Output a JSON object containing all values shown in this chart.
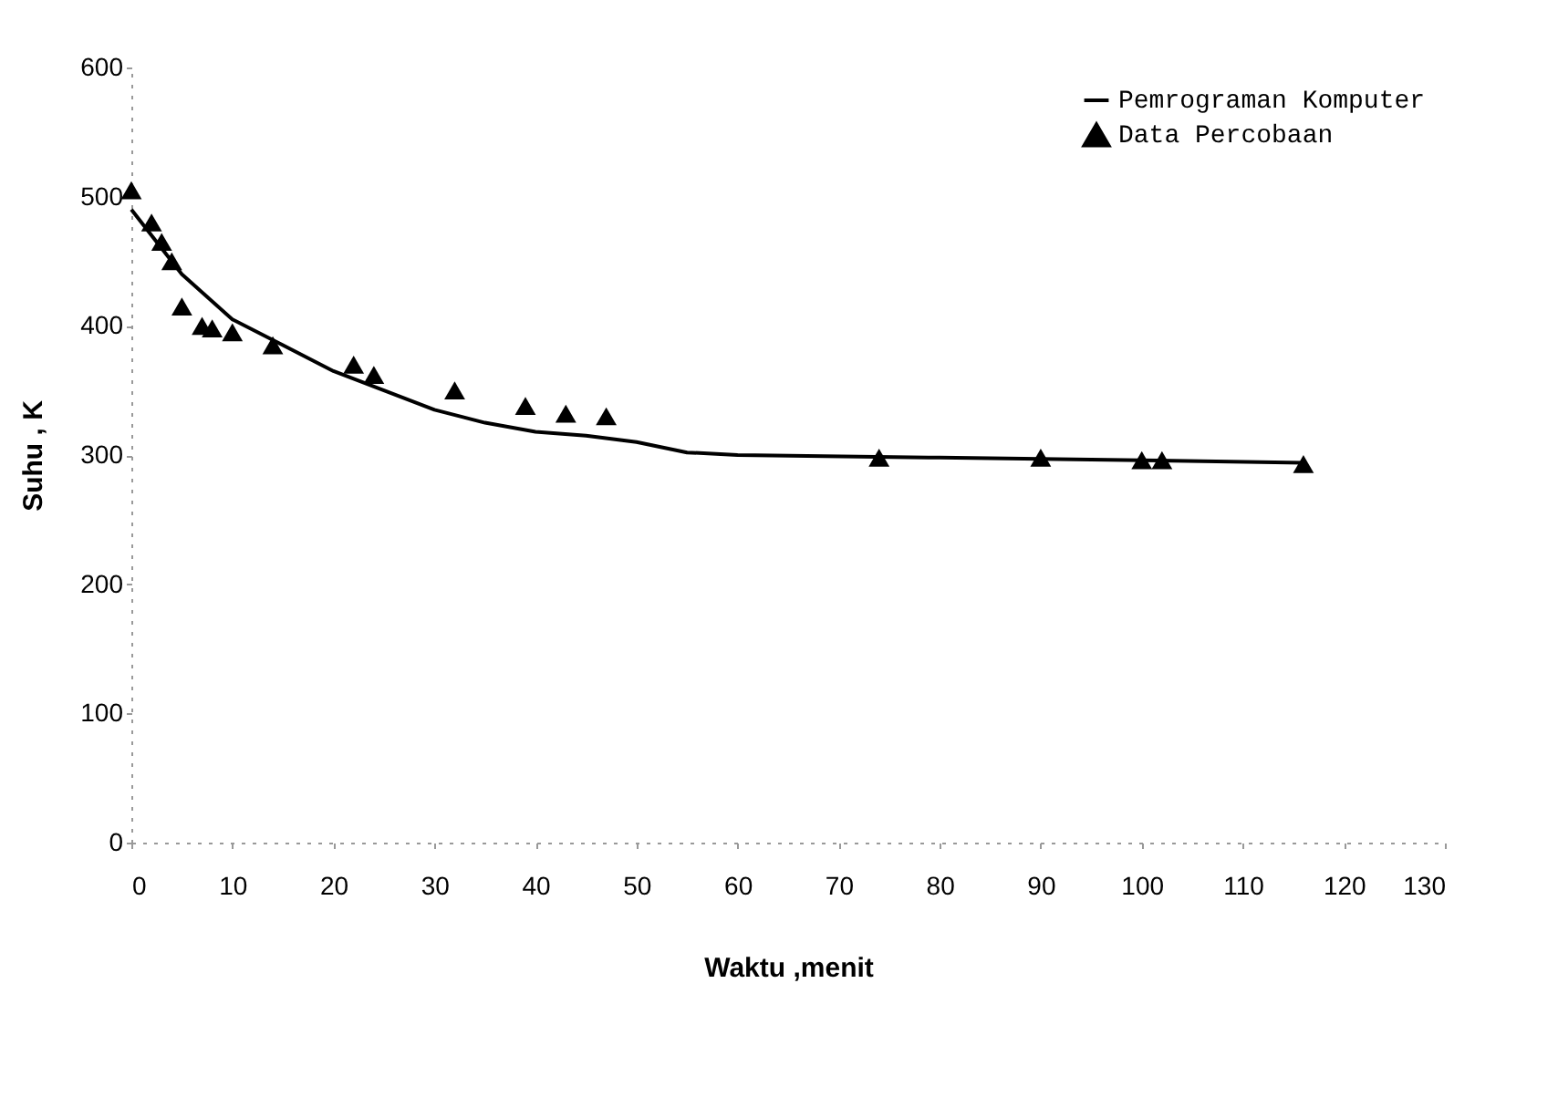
{
  "chart_data": {
    "type": "line",
    "xlabel": "Waktu ,menit",
    "ylabel": "Suhu , K",
    "xlim": [
      0,
      130
    ],
    "ylim": [
      0,
      600
    ],
    "xticks": [
      0,
      10,
      20,
      30,
      40,
      50,
      60,
      70,
      80,
      90,
      100,
      110,
      120,
      130
    ],
    "yticks": [
      0,
      100,
      200,
      300,
      400,
      500,
      600
    ],
    "grid": false,
    "legend": "top right",
    "series": [
      {
        "name": "Pemrograman Komputer",
        "color": "#000000",
        "marker": "none",
        "line_style": "solid",
        "x": [
          0,
          5,
          10,
          15,
          20,
          25,
          30,
          35,
          40,
          45,
          50,
          55,
          60,
          80,
          100,
          116
        ],
        "values": [
          490,
          440,
          405,
          385,
          365,
          350,
          335,
          325,
          318,
          315,
          310,
          302,
          300,
          298,
          296,
          294
        ]
      },
      {
        "name": "Data Percobaan",
        "type": "scatter",
        "color": "#000000",
        "marker": "triangle",
        "x": [
          0,
          2,
          3,
          4,
          5,
          7,
          8,
          10,
          14,
          22,
          24,
          32,
          39,
          43,
          47,
          74,
          90,
          100,
          102,
          116
        ],
        "values": [
          505,
          480,
          465,
          450,
          415,
          400,
          398,
          395,
          385,
          370,
          362,
          350,
          338,
          332,
          330,
          298,
          298,
          296,
          296,
          293
        ]
      }
    ]
  }
}
